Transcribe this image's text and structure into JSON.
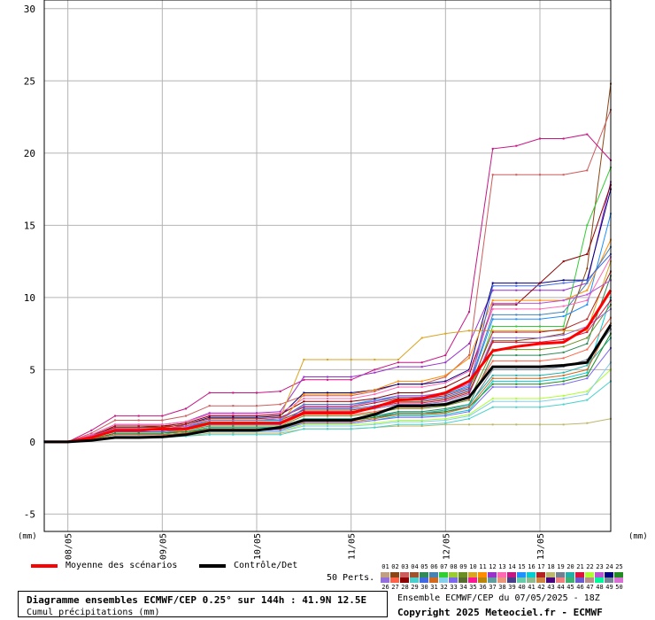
{
  "chart_data": {
    "type": "line",
    "y_ticks": [
      30,
      25,
      20,
      15,
      10,
      5,
      0,
      -5
    ],
    "ylim": [
      -6.2,
      30.6
    ],
    "x_ticks": [
      "08/05",
      "09/05",
      "10/05",
      "11/05",
      "12/05",
      "13/05"
    ],
    "x_tick_hours": [
      6,
      30,
      54,
      78,
      102,
      126
    ],
    "xlim_hours": [
      0,
      144
    ],
    "grid": true,
    "unit_left": "(mm)",
    "unit_right": "(mm)",
    "time_hours": [
      0,
      6,
      12,
      18,
      24,
      30,
      36,
      42,
      48,
      54,
      60,
      66,
      72,
      78,
      84,
      90,
      96,
      102,
      108,
      114,
      120,
      126,
      132,
      138,
      144
    ],
    "mean": {
      "name": "Moyenne des scénarios",
      "color": "#ff0000",
      "values": [
        0,
        0,
        0.3,
        0.8,
        0.8,
        0.9,
        0.9,
        1.3,
        1.3,
        1.3,
        1.3,
        2.0,
        2.0,
        2.0,
        2.4,
        2.9,
        3.0,
        3.4,
        4.2,
        6.3,
        6.6,
        6.8,
        6.9,
        7.9,
        10.5
      ]
    },
    "control": {
      "name": "Contrôle/Det",
      "color": "#000000",
      "values": [
        0,
        0,
        0.1,
        0.3,
        0.3,
        0.35,
        0.5,
        0.8,
        0.8,
        0.8,
        1.0,
        1.5,
        1.5,
        1.5,
        1.9,
        2.5,
        2.5,
        2.6,
        3.1,
        5.2,
        5.2,
        5.2,
        5.3,
        5.5,
        8.1
      ]
    },
    "members": [
      {
        "color": "#8b4513",
        "values": [
          0,
          0,
          0.5,
          1.0,
          1.0,
          1.1,
          1.1,
          1.5,
          1.5,
          1.5,
          1.5,
          2.2,
          2.2,
          2.2,
          2.4,
          2.8,
          2.8,
          3.0,
          3.5,
          7.0,
          7.0,
          7.2,
          7.5,
          12.0,
          24.8
        ]
      },
      {
        "color": "#cd5c5c",
        "values": [
          0,
          0,
          0.6,
          1.5,
          1.5,
          1.5,
          1.8,
          2.5,
          2.5,
          2.5,
          2.6,
          3.2,
          3.2,
          3.2,
          3.5,
          4.0,
          4.0,
          4.5,
          6.0,
          18.5,
          18.5,
          18.5,
          18.5,
          18.8,
          23.0
        ]
      },
      {
        "color": "#c71585",
        "values": [
          0,
          0,
          0.8,
          1.8,
          1.8,
          1.8,
          2.3,
          3.4,
          3.4,
          3.4,
          3.5,
          4.3,
          4.3,
          4.3,
          5.0,
          5.5,
          5.5,
          6.0,
          9.0,
          20.3,
          20.5,
          21.0,
          21.0,
          21.3,
          19.5
        ]
      },
      {
        "color": "#9932cc",
        "values": [
          0,
          0,
          0.5,
          1.2,
          1.2,
          1.2,
          1.4,
          2.0,
          2.0,
          2.0,
          2.1,
          4.5,
          4.5,
          4.5,
          4.8,
          5.2,
          5.2,
          5.5,
          6.8,
          10.5,
          10.5,
          10.5,
          10.5,
          11.0,
          18.0
        ]
      },
      {
        "color": "#32cd32",
        "values": [
          0,
          0,
          0.3,
          0.9,
          0.9,
          0.9,
          1.0,
          1.4,
          1.4,
          1.4,
          1.4,
          2.0,
          2.0,
          2.0,
          2.3,
          2.6,
          2.6,
          2.8,
          3.3,
          8.0,
          8.0,
          8.0,
          8.0,
          15.0,
          19.0
        ]
      },
      {
        "color": "#000080",
        "values": [
          0,
          0,
          0.4,
          1.0,
          1.0,
          1.0,
          1.2,
          1.7,
          1.7,
          1.7,
          1.8,
          3.4,
          3.4,
          3.4,
          3.6,
          4.0,
          4.0,
          4.2,
          5.0,
          11.0,
          11.0,
          11.0,
          11.2,
          11.2,
          17.5
        ]
      },
      {
        "color": "#8b0000",
        "values": [
          0,
          0,
          0.4,
          1.1,
          1.1,
          1.1,
          1.3,
          1.8,
          1.8,
          1.8,
          1.9,
          2.8,
          2.8,
          2.8,
          3.0,
          3.4,
          3.4,
          3.8,
          4.6,
          9.5,
          9.5,
          11.0,
          12.5,
          13.0,
          17.8
        ]
      },
      {
        "color": "#1e90ff",
        "values": [
          0,
          0,
          0.3,
          0.8,
          0.8,
          0.8,
          1.0,
          1.5,
          1.5,
          1.5,
          1.5,
          2.6,
          2.6,
          2.6,
          2.9,
          3.2,
          3.2,
          3.3,
          3.8,
          8.5,
          8.5,
          8.5,
          8.7,
          9.5,
          15.8
        ]
      },
      {
        "color": "#daa520",
        "values": [
          0,
          0,
          0.4,
          1.0,
          1.0,
          1.0,
          1.2,
          1.6,
          1.6,
          1.6,
          1.7,
          5.7,
          5.7,
          5.7,
          5.7,
          5.7,
          7.2,
          7.5,
          7.7,
          7.7,
          7.7,
          7.7,
          7.7,
          7.7,
          12.5
        ]
      },
      {
        "color": "#ff8c00",
        "values": [
          0,
          0,
          0.3,
          0.7,
          0.7,
          0.7,
          0.9,
          1.2,
          1.2,
          1.2,
          1.3,
          3.3,
          3.3,
          3.3,
          3.6,
          4.2,
          4.2,
          4.6,
          5.8,
          9.8,
          9.8,
          9.8,
          9.8,
          10.5,
          14.0
        ]
      },
      {
        "color": "#ff69b4",
        "values": [
          0,
          0,
          0.5,
          1.2,
          1.2,
          1.2,
          1.4,
          1.9,
          1.9,
          1.9,
          2.0,
          3.0,
          3.0,
          3.0,
          3.3,
          3.8,
          3.8,
          4.1,
          4.9,
          9.2,
          9.2,
          9.2,
          9.4,
          9.8,
          12.8
        ]
      },
      {
        "color": "#2e8b57",
        "values": [
          0,
          0,
          0.2,
          0.6,
          0.6,
          0.6,
          0.7,
          1.0,
          1.0,
          1.0,
          1.0,
          1.6,
          1.6,
          1.6,
          1.8,
          2.1,
          2.1,
          2.3,
          2.6,
          6.0,
          6.0,
          6.0,
          6.2,
          6.8,
          11.5
        ]
      },
      {
        "color": "#4682b4",
        "values": [
          0,
          0,
          0.3,
          0.9,
          0.9,
          0.9,
          1.1,
          1.5,
          1.5,
          1.5,
          1.6,
          2.6,
          2.6,
          2.6,
          2.8,
          3.1,
          3.1,
          3.3,
          3.9,
          8.8,
          8.8,
          8.8,
          9.0,
          11.0,
          13.5
        ]
      },
      {
        "color": "#00ced1",
        "values": [
          0,
          0,
          0.2,
          0.5,
          0.5,
          0.5,
          0.6,
          0.9,
          0.9,
          0.9,
          0.9,
          1.3,
          1.3,
          1.3,
          1.5,
          1.8,
          1.8,
          1.9,
          2.2,
          4.2,
          4.2,
          4.2,
          4.4,
          4.8,
          10.0
        ]
      },
      {
        "color": "#b22222",
        "values": [
          0,
          0,
          0.4,
          1.0,
          1.0,
          1.0,
          1.2,
          1.6,
          1.6,
          1.6,
          1.7,
          2.4,
          2.4,
          2.4,
          2.7,
          3.0,
          3.0,
          3.2,
          3.7,
          7.6,
          7.6,
          7.6,
          7.8,
          8.5,
          11.8
        ]
      },
      {
        "color": "#6b8e23",
        "values": [
          0,
          0,
          0.2,
          0.6,
          0.6,
          0.6,
          0.8,
          1.1,
          1.1,
          1.1,
          1.1,
          1.8,
          1.8,
          1.8,
          2.0,
          2.3,
          2.3,
          2.5,
          2.9,
          6.4,
          6.4,
          6.4,
          6.6,
          7.2,
          9.5
        ]
      },
      {
        "color": "#9370db",
        "values": [
          0,
          0,
          0.3,
          0.8,
          0.8,
          0.8,
          1.0,
          1.3,
          1.3,
          1.3,
          1.4,
          2.1,
          2.1,
          2.1,
          2.3,
          2.6,
          2.6,
          2.8,
          3.3,
          7.2,
          7.2,
          7.2,
          7.4,
          8.0,
          9.2
        ]
      },
      {
        "color": "#ff6347",
        "values": [
          0,
          0,
          0.3,
          0.7,
          0.7,
          0.7,
          0.8,
          1.2,
          1.2,
          1.2,
          1.2,
          1.9,
          1.9,
          1.9,
          2.1,
          2.4,
          2.4,
          2.6,
          3.0,
          5.6,
          5.6,
          5.6,
          5.8,
          6.4,
          8.6
        ]
      },
      {
        "color": "#708090",
        "values": [
          0,
          0,
          0.2,
          0.5,
          0.5,
          0.5,
          0.6,
          0.9,
          0.9,
          0.9,
          0.9,
          1.5,
          1.5,
          1.5,
          1.7,
          2.0,
          2.0,
          2.1,
          2.5,
          5.0,
          5.0,
          5.0,
          5.2,
          5.7,
          7.8
        ]
      },
      {
        "color": "#20b2aa",
        "values": [
          0,
          0,
          0.2,
          0.6,
          0.6,
          0.6,
          0.7,
          1.0,
          1.0,
          1.0,
          1.0,
          1.6,
          1.6,
          1.6,
          1.8,
          2.0,
          2.0,
          2.2,
          2.6,
          4.6,
          4.6,
          4.6,
          4.8,
          5.3,
          7.2
        ]
      },
      {
        "color": "#adff2f",
        "values": [
          0,
          0,
          0.1,
          0.4,
          0.4,
          0.4,
          0.5,
          0.7,
          0.7,
          0.7,
          0.7,
          1.2,
          1.2,
          1.2,
          1.3,
          1.5,
          1.5,
          1.6,
          1.9,
          3.0,
          3.0,
          3.0,
          3.2,
          3.5,
          5.0
        ]
      },
      {
        "color": "#bdb76b",
        "values": [
          0,
          0,
          0.1,
          0.3,
          0.3,
          0.3,
          0.4,
          0.6,
          0.6,
          0.6,
          0.6,
          0.9,
          0.9,
          0.9,
          1.0,
          1.1,
          1.1,
          1.2,
          1.2,
          1.2,
          1.2,
          1.2,
          1.2,
          1.3,
          1.6
        ]
      },
      {
        "color": "#48d1cc",
        "values": [
          0,
          0,
          0.1,
          0.3,
          0.3,
          0.3,
          0.4,
          0.5,
          0.5,
          0.5,
          0.5,
          0.9,
          0.9,
          0.9,
          1.0,
          1.2,
          1.2,
          1.3,
          1.6,
          2.4,
          2.4,
          2.4,
          2.6,
          2.9,
          4.2
        ]
      },
      {
        "color": "#7b68ee",
        "values": [
          0,
          0,
          0.2,
          0.5,
          0.5,
          0.5,
          0.6,
          0.8,
          0.8,
          0.8,
          0.8,
          1.3,
          1.3,
          1.3,
          1.5,
          1.7,
          1.7,
          1.8,
          2.1,
          3.8,
          3.8,
          3.8,
          4.0,
          4.4,
          6.5
        ]
      },
      {
        "color": "#dc143c",
        "values": [
          0,
          0,
          0.3,
          0.8,
          0.8,
          0.8,
          0.9,
          1.3,
          1.3,
          1.3,
          1.3,
          2.1,
          2.1,
          2.1,
          2.4,
          2.7,
          2.7,
          2.9,
          3.4,
          6.9,
          6.9,
          6.9,
          7.1,
          7.6,
          9.8
        ]
      },
      {
        "color": "#228b22",
        "values": [
          0,
          0,
          0.2,
          0.6,
          0.6,
          0.6,
          0.7,
          0.9,
          0.9,
          0.9,
          1.0,
          1.5,
          1.5,
          1.5,
          1.7,
          1.9,
          1.9,
          2.1,
          2.4,
          4.0,
          4.0,
          4.0,
          4.2,
          4.6,
          7.5
        ]
      },
      {
        "color": "#4169e1",
        "values": [
          0,
          0,
          0.3,
          0.7,
          0.7,
          0.7,
          0.9,
          1.2,
          1.2,
          1.2,
          1.2,
          2.3,
          2.3,
          2.3,
          2.5,
          2.9,
          2.9,
          3.1,
          3.6,
          10.8,
          10.8,
          10.8,
          11.0,
          11.2,
          13.0
        ]
      },
      {
        "color": "#d2691e",
        "values": [
          0,
          0,
          0.2,
          0.5,
          0.5,
          0.5,
          0.6,
          0.9,
          0.9,
          0.9,
          0.9,
          1.4,
          1.4,
          1.4,
          1.6,
          1.9,
          1.9,
          2.0,
          2.4,
          4.4,
          4.4,
          4.4,
          4.6,
          5.0,
          8.2
        ]
      },
      {
        "color": "#ba55d3",
        "values": [
          0,
          0,
          0.4,
          0.9,
          0.9,
          0.9,
          1.1,
          1.5,
          1.5,
          1.5,
          1.6,
          2.5,
          2.5,
          2.5,
          2.8,
          3.2,
          3.2,
          3.4,
          4.0,
          9.6,
          9.6,
          9.6,
          9.8,
          10.2,
          11.2
        ]
      },
      {
        "color": "#87ceeb",
        "values": [
          0,
          0,
          0.1,
          0.4,
          0.4,
          0.4,
          0.5,
          0.7,
          0.7,
          0.7,
          0.7,
          1.1,
          1.1,
          1.1,
          1.2,
          1.4,
          1.4,
          1.5,
          1.8,
          2.8,
          2.8,
          2.8,
          3.0,
          3.3,
          5.5
        ]
      }
    ]
  },
  "legend": {
    "mean_label": "Moyenne des scénarios",
    "control_label": "Contrôle/Det",
    "perts_label": "50 Perts.",
    "members_top": [
      "01",
      "02",
      "03",
      "04",
      "05",
      "06",
      "07",
      "08",
      "09",
      "10",
      "11",
      "12",
      "13",
      "14",
      "15",
      "16",
      "17",
      "18",
      "19",
      "20",
      "21",
      "22",
      "23",
      "24",
      "25"
    ],
    "members_bottom": [
      "26",
      "27",
      "28",
      "29",
      "30",
      "31",
      "32",
      "33",
      "34",
      "35",
      "36",
      "37",
      "38",
      "39",
      "40",
      "41",
      "42",
      "43",
      "44",
      "45",
      "46",
      "47",
      "48",
      "49",
      "50"
    ],
    "swatch_colors_top": [
      "#c0a080",
      "#8b4513",
      "#cd5c5c",
      "#a0522d",
      "#2e8b57",
      "#4682b4",
      "#32cd32",
      "#9acd32",
      "#6b8e23",
      "#daa520",
      "#ff8c00",
      "#9932cc",
      "#ff69b4",
      "#c71585",
      "#1e90ff",
      "#00ced1",
      "#b22222",
      "#bdb76b",
      "#708090",
      "#20b2aa",
      "#dc143c",
      "#adff2f",
      "#ba55d3",
      "#000080",
      "#228b22"
    ],
    "swatch_colors_bottom": [
      "#9370db",
      "#ff6347",
      "#8b0000",
      "#48d1cc",
      "#4169e1",
      "#d2691e",
      "#87ceeb",
      "#7b68ee",
      "#556b2f",
      "#ff1493",
      "#b8860b",
      "#5f9ea0",
      "#e9967a",
      "#483d8b",
      "#66cdaa",
      "#8fbc8f",
      "#cd853f",
      "#4b0082",
      "#f08080",
      "#3cb371",
      "#6a5acd",
      "#bc8f8f",
      "#00fa9a",
      "#778899",
      "#da70d6"
    ]
  },
  "footer": {
    "title": "Diagramme ensembles ECMWF/CEP 0.25° sur 144h : 41.9N 12.5E",
    "subtitle": "Cumul précipitations (mm)",
    "run_info": "Ensemble ECMWF/CEP du 07/05/2025 - 18Z",
    "copyright": "Copyright 2025 Meteociel.fr - ECMWF"
  }
}
